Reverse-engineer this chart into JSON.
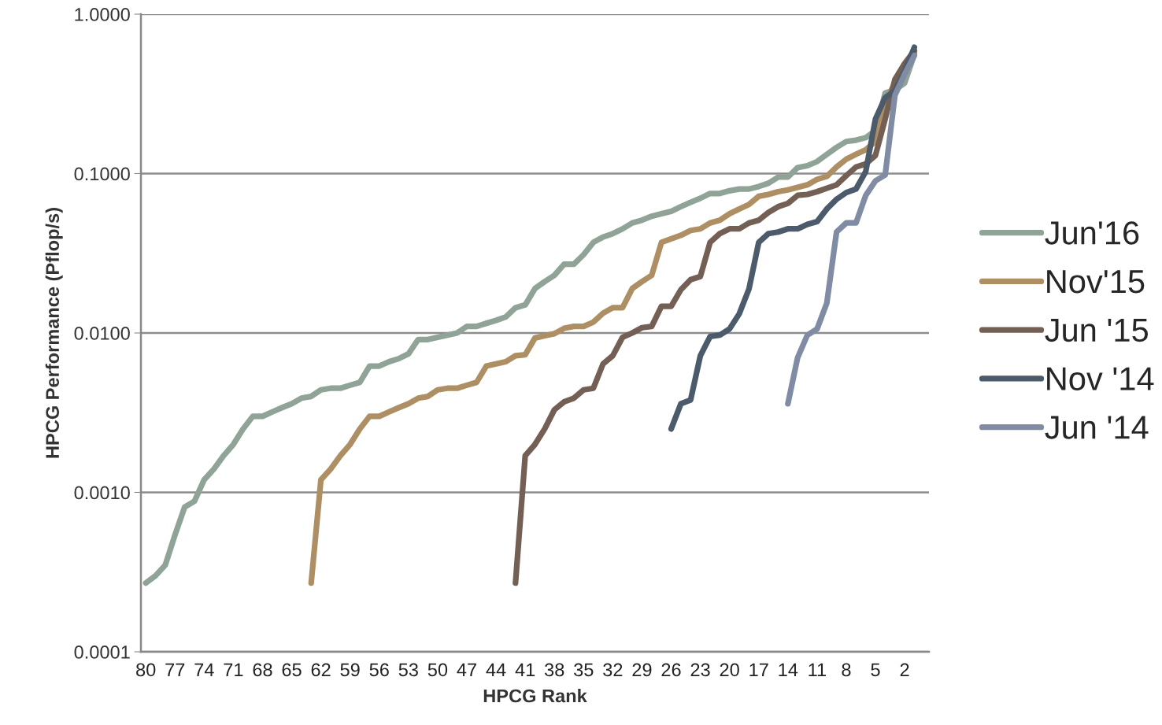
{
  "chart_data": {
    "type": "line",
    "xlabel": "HPCG Rank",
    "ylabel": "HPCG Performance (Pflop/s)",
    "categories": [
      "80",
      null,
      null,
      "77",
      null,
      null,
      "74",
      null,
      null,
      "71",
      null,
      null,
      "68",
      null,
      null,
      "65",
      null,
      null,
      "62",
      null,
      null,
      "59",
      null,
      null,
      "56",
      null,
      null,
      "53",
      null,
      null,
      "50",
      null,
      null,
      "47",
      null,
      null,
      "44",
      null,
      null,
      "41",
      null,
      null,
      "38",
      null,
      null,
      "35",
      null,
      null,
      "32",
      null,
      null,
      "29",
      null,
      null,
      "26",
      null,
      null,
      "23",
      null,
      null,
      "20",
      null,
      null,
      "17",
      null,
      null,
      "14",
      null,
      null,
      "11",
      null,
      null,
      "8",
      null,
      null,
      "5",
      null,
      null,
      "2",
      null
    ],
    "log": "y",
    "ylim": [
      0.0001,
      1
    ],
    "yticks": [
      {
        "value": 0.0001,
        "label": "0.0001"
      },
      {
        "value": 0.001,
        "label": "0.0010"
      },
      {
        "value": 0.01,
        "label": "0.0100"
      },
      {
        "value": 0.1,
        "label": "0.1000"
      },
      {
        "value": 1,
        "label": "1.0000"
      }
    ],
    "grid": "y",
    "legend": "right",
    "marker": "none",
    "line_style": "solid",
    "series": [
      {
        "name": "Jun'16",
        "color": "#8fa396",
        "values": [
          0.00027,
          0.0003,
          0.00035,
          0.00054,
          0.00081,
          0.00088,
          0.0012,
          0.0014,
          0.0017,
          0.002,
          0.0025,
          0.003,
          0.003,
          0.0032,
          0.0034,
          0.0036,
          0.0039,
          0.004,
          0.0044,
          0.0045,
          0.0045,
          0.0047,
          0.0049,
          0.0062,
          0.0062,
          0.0066,
          0.0069,
          0.0074,
          0.0091,
          0.0091,
          0.0094,
          0.0097,
          0.01,
          0.011,
          0.011,
          0.0115,
          0.012,
          0.0126,
          0.0144,
          0.015,
          0.019,
          0.021,
          0.023,
          0.027,
          0.027,
          0.031,
          0.037,
          0.04,
          0.042,
          0.045,
          0.049,
          0.051,
          0.054,
          0.056,
          0.058,
          0.062,
          0.066,
          0.07,
          0.075,
          0.075,
          0.078,
          0.08,
          0.08,
          0.083,
          0.087,
          0.095,
          0.095,
          0.109,
          0.112,
          0.119,
          0.132,
          0.146,
          0.159,
          0.162,
          0.168,
          0.186,
          0.32,
          0.335,
          0.37,
          0.56
        ]
      },
      {
        "name": "Nov'15",
        "color": "#ad8f63",
        "values": [
          null,
          null,
          null,
          null,
          null,
          null,
          null,
          null,
          null,
          null,
          null,
          null,
          null,
          null,
          null,
          null,
          null,
          0.00027,
          0.0012,
          0.0014,
          0.0017,
          0.002,
          0.0025,
          0.003,
          0.003,
          0.0032,
          0.0034,
          0.0036,
          0.0039,
          0.004,
          0.0044,
          0.0045,
          0.0045,
          0.0047,
          0.0049,
          0.0062,
          0.0064,
          0.0066,
          0.0072,
          0.0073,
          0.0093,
          0.0096,
          0.0099,
          0.0107,
          0.011,
          0.011,
          0.0117,
          0.0133,
          0.0144,
          0.0144,
          0.019,
          0.021,
          0.023,
          0.037,
          0.039,
          0.041,
          0.044,
          0.045,
          0.049,
          0.051,
          0.056,
          0.06,
          0.064,
          0.072,
          0.074,
          0.077,
          0.079,
          0.082,
          0.085,
          0.092,
          0.096,
          0.11,
          0.123,
          0.132,
          0.141,
          0.159,
          0.28,
          0.37,
          0.47,
          0.57
        ]
      },
      {
        "name": "Jun '15",
        "color": "#735f54",
        "values": [
          null,
          null,
          null,
          null,
          null,
          null,
          null,
          null,
          null,
          null,
          null,
          null,
          null,
          null,
          null,
          null,
          null,
          null,
          null,
          null,
          null,
          null,
          null,
          null,
          null,
          null,
          null,
          null,
          null,
          null,
          null,
          null,
          null,
          null,
          null,
          null,
          null,
          null,
          0.00027,
          0.0017,
          0.002,
          0.0025,
          0.0033,
          0.0037,
          0.0039,
          0.0044,
          0.0045,
          0.0064,
          0.0072,
          0.0094,
          0.01,
          0.0108,
          0.011,
          0.0147,
          0.0147,
          0.0187,
          0.0216,
          0.0226,
          0.037,
          0.042,
          0.045,
          0.045,
          0.049,
          0.051,
          0.057,
          0.062,
          0.065,
          0.073,
          0.074,
          0.077,
          0.081,
          0.085,
          0.097,
          0.11,
          0.115,
          0.13,
          0.22,
          0.39,
          0.49,
          0.59
        ]
      },
      {
        "name": "Nov '14",
        "color": "#4b5b6c",
        "values": [
          null,
          null,
          null,
          null,
          null,
          null,
          null,
          null,
          null,
          null,
          null,
          null,
          null,
          null,
          null,
          null,
          null,
          null,
          null,
          null,
          null,
          null,
          null,
          null,
          null,
          null,
          null,
          null,
          null,
          null,
          null,
          null,
          null,
          null,
          null,
          null,
          null,
          null,
          null,
          null,
          null,
          null,
          null,
          null,
          null,
          null,
          null,
          null,
          null,
          null,
          null,
          null,
          null,
          null,
          0.0025,
          0.0036,
          0.0038,
          0.0072,
          0.0095,
          0.0097,
          0.0106,
          0.0132,
          0.0189,
          0.037,
          0.042,
          0.043,
          0.045,
          0.045,
          0.048,
          0.05,
          0.06,
          0.069,
          0.076,
          0.08,
          0.103,
          0.22,
          0.3,
          0.33,
          0.44,
          0.62
        ]
      },
      {
        "name": "Jun '14",
        "color": "#7f8ca3",
        "values": [
          null,
          null,
          null,
          null,
          null,
          null,
          null,
          null,
          null,
          null,
          null,
          null,
          null,
          null,
          null,
          null,
          null,
          null,
          null,
          null,
          null,
          null,
          null,
          null,
          null,
          null,
          null,
          null,
          null,
          null,
          null,
          null,
          null,
          null,
          null,
          null,
          null,
          null,
          null,
          null,
          null,
          null,
          null,
          null,
          null,
          null,
          null,
          null,
          null,
          null,
          null,
          null,
          null,
          null,
          null,
          null,
          null,
          null,
          null,
          null,
          null,
          null,
          null,
          null,
          null,
          null,
          0.0036,
          0.007,
          0.0097,
          0.0106,
          0.0154,
          0.043,
          0.049,
          0.049,
          0.073,
          0.09,
          0.098,
          0.31,
          0.42,
          0.55
        ]
      }
    ]
  }
}
